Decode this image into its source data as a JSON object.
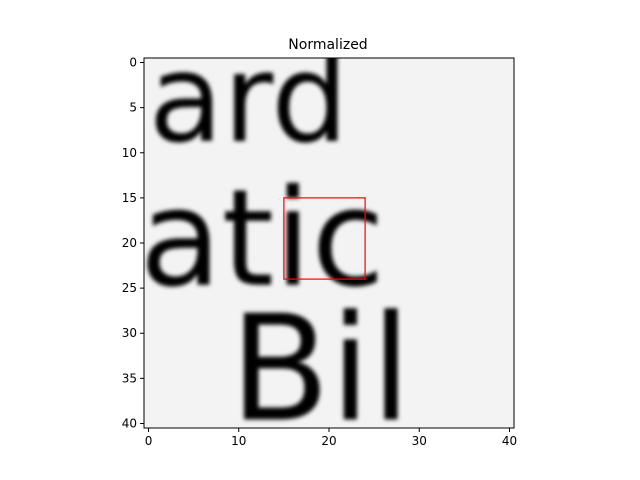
{
  "chart_data": {
    "type": "heatmap",
    "title": "Normalized",
    "colormap": "gray",
    "image_size": [
      41,
      41
    ],
    "x_ticks": [
      "0",
      "10",
      "20",
      "30",
      "40"
    ],
    "x_tick_values": [
      0,
      10,
      20,
      30,
      40
    ],
    "y_ticks": [
      "0",
      "5",
      "10",
      "15",
      "20",
      "25",
      "30",
      "35",
      "40"
    ],
    "y_tick_values": [
      0,
      5,
      10,
      15,
      20,
      25,
      30,
      35,
      40
    ],
    "xlim": [
      -0.5,
      40.5
    ],
    "ylim": [
      40.5,
      -0.5
    ],
    "highlight_box": {
      "x0": 15,
      "y0": 15,
      "x1": 24,
      "y1": 24,
      "color": "#ff0000"
    },
    "text_lines": [
      {
        "text": "ard",
        "y_range": [
          0,
          10
        ],
        "x_start": 0
      },
      {
        "text": "atic",
        "y_range": [
          15,
          26
        ],
        "x_start": -1
      },
      {
        "text": "Bil",
        "y_range": [
          29,
          41
        ],
        "x_start": 9
      }
    ]
  }
}
